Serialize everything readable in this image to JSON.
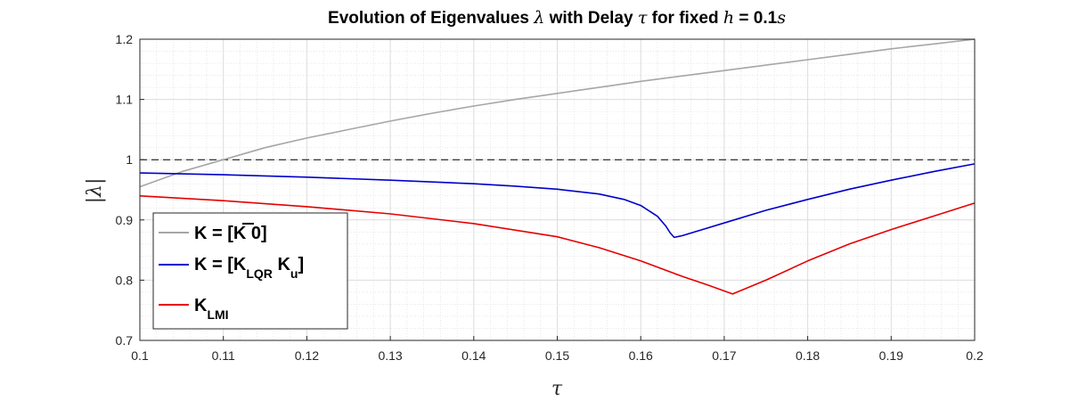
{
  "chart_data": {
    "type": "line",
    "title_parts": [
      "Evolution of Eigenvalues ",
      "λ",
      " with Delay ",
      "τ",
      " for fixed ",
      "h",
      " = 0.1",
      "s"
    ],
    "xlabel": "τ",
    "ylabel": "|λ|",
    "xlim": [
      0.1,
      0.2
    ],
    "ylim": [
      0.7,
      1.2
    ],
    "xticks": [
      0.1,
      0.11,
      0.12,
      0.13,
      0.14,
      0.15,
      0.16,
      0.17,
      0.18,
      0.19,
      0.2
    ],
    "xtick_labels": [
      "0.1",
      "0.11",
      "0.12",
      "0.13",
      "0.14",
      "0.15",
      "0.16",
      "0.17",
      "0.18",
      "0.19",
      "0.2"
    ],
    "yticks": [
      0.7,
      0.8,
      0.9,
      1.0,
      1.1,
      1.2
    ],
    "ytick_labels": [
      "0.7",
      "0.8",
      "0.9",
      "1",
      "1.1",
      "1.2"
    ],
    "grid": true,
    "minor_grid": true,
    "reference_line": {
      "y": 1.0,
      "style": "dashed",
      "color": "#000000"
    },
    "legend": {
      "placement": "lower-left",
      "entries": [
        {
          "main": "K = [",
          "bar": "K",
          "after": " 0]",
          "sub": ""
        },
        {
          "main": "K = [K",
          "sub": "LQR",
          "mid": " K",
          "sub2": "u",
          "after": "]"
        },
        {
          "main": "K",
          "sub": "LMI"
        }
      ]
    },
    "series": [
      {
        "color": "#a6a6a6",
        "x": [
          0.1,
          0.105,
          0.11,
          0.115,
          0.12,
          0.125,
          0.13,
          0.135,
          0.14,
          0.145,
          0.15,
          0.155,
          0.16,
          0.165,
          0.17,
          0.175,
          0.18,
          0.185,
          0.19,
          0.195,
          0.2
        ],
        "y": [
          0.955,
          0.98,
          1.0,
          1.02,
          1.036,
          1.05,
          1.064,
          1.077,
          1.089,
          1.1,
          1.11,
          1.12,
          1.13,
          1.139,
          1.148,
          1.157,
          1.166,
          1.175,
          1.184,
          1.192,
          1.2
        ]
      },
      {
        "color": "#0000cc",
        "x": [
          0.1,
          0.11,
          0.12,
          0.13,
          0.14,
          0.145,
          0.15,
          0.155,
          0.158,
          0.16,
          0.162,
          0.163,
          0.1635,
          0.164,
          0.165,
          0.17,
          0.175,
          0.18,
          0.185,
          0.19,
          0.195,
          0.2
        ],
        "y": [
          0.978,
          0.975,
          0.971,
          0.966,
          0.96,
          0.956,
          0.951,
          0.943,
          0.934,
          0.924,
          0.906,
          0.89,
          0.879,
          0.871,
          0.874,
          0.895,
          0.916,
          0.934,
          0.951,
          0.966,
          0.98,
          0.993
        ]
      },
      {
        "color": "#e60000",
        "x": [
          0.1,
          0.11,
          0.12,
          0.13,
          0.14,
          0.15,
          0.155,
          0.16,
          0.165,
          0.168,
          0.171,
          0.175,
          0.18,
          0.185,
          0.19,
          0.195,
          0.2
        ],
        "y": [
          0.94,
          0.932,
          0.922,
          0.91,
          0.894,
          0.872,
          0.854,
          0.832,
          0.806,
          0.792,
          0.777,
          0.8,
          0.832,
          0.86,
          0.884,
          0.906,
          0.928
        ]
      }
    ]
  }
}
